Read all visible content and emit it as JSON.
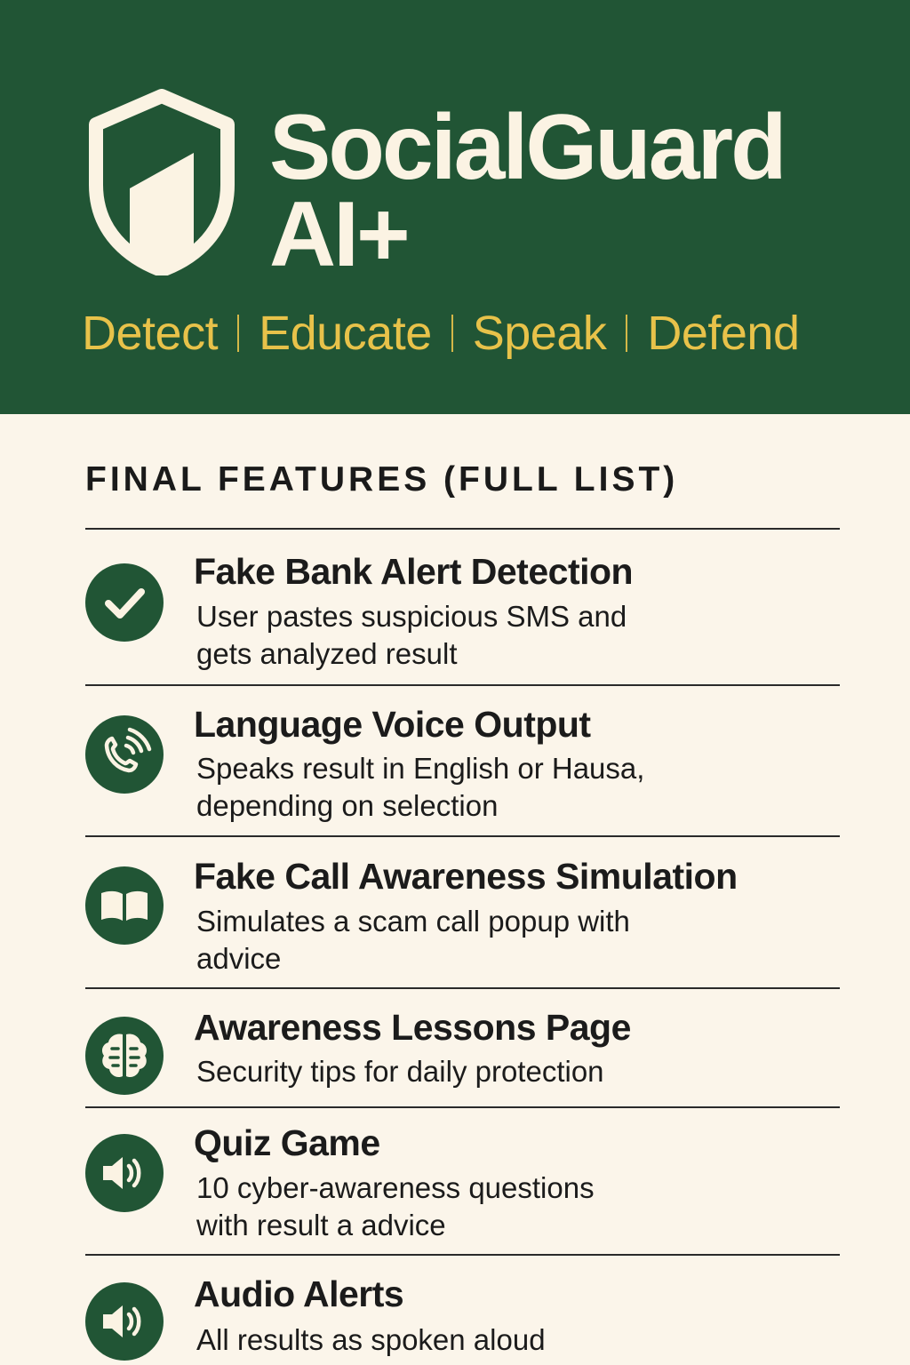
{
  "header": {
    "title_line1": "SocialGuard",
    "title_line2": "AI+",
    "tagline": [
      "Detect",
      "Educate",
      "Speak",
      "Defend"
    ],
    "colors": {
      "background": "#215535",
      "title": "#fbf3e3",
      "tagline": "#e8c24a"
    }
  },
  "section": {
    "title": "FINAL FEATURES (FULL LIST)"
  },
  "features": [
    {
      "icon": "checkmark-icon",
      "title": "Fake Bank Alert Detection",
      "desc_line1": "User pastes suspicious SMS and",
      "desc_line2": "gets analyzed result"
    },
    {
      "icon": "phone-voice-icon",
      "title": "Language Voice Output",
      "desc_line1": "Speaks result in English or Hausa,",
      "desc_line2": "depending on selection"
    },
    {
      "icon": "book-icon",
      "title": "Fake Call Awareness Simulation",
      "desc_line1": "Simulates a scam call popup with",
      "desc_line2": "advice"
    },
    {
      "icon": "brain-icon",
      "title": "Awareness Lessons Page",
      "desc_line1": "Security tips for daily protection",
      "desc_line2": ""
    },
    {
      "icon": "speaker-icon",
      "title": "Quiz Game",
      "desc_line1": "10 cyber-awareness questions",
      "desc_line2": "with result a advice"
    },
    {
      "icon": "speaker-icon",
      "title": "Audio Alerts",
      "desc_line1": "All results as spoken aloud",
      "desc_line2": ""
    }
  ],
  "colors": {
    "page_background": "#fbf5ea",
    "icon_circle": "#215535",
    "icon_glyph": "#fbf3e3",
    "text": "#1b1b1b"
  }
}
